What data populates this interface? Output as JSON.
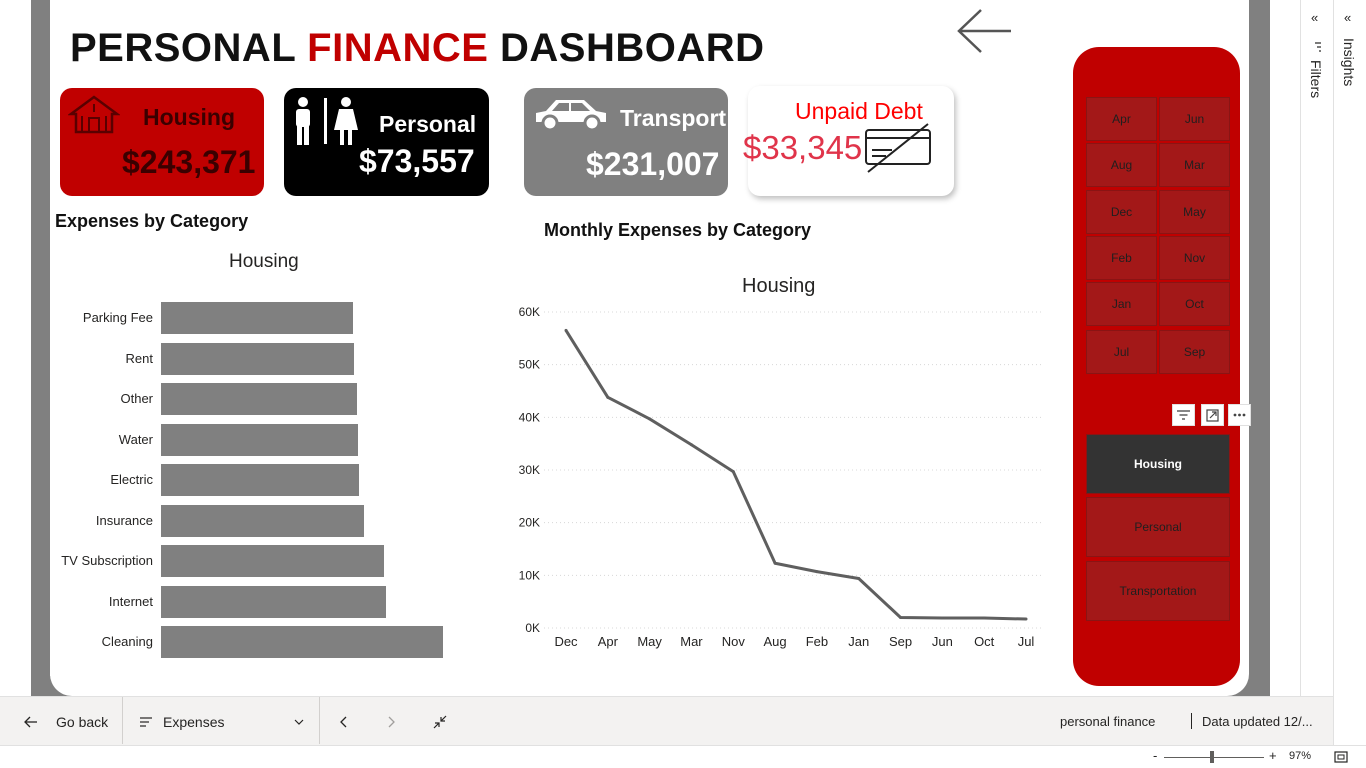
{
  "title": {
    "part1": "PERSONAL ",
    "accent": "FINANCE",
    "part2": " DASHBOARD"
  },
  "kpis": {
    "housing": {
      "label": "Housing",
      "value": "$243,371"
    },
    "personal": {
      "label": "Personal",
      "value": "$73,557"
    },
    "transport": {
      "label": "Transport",
      "value": "$231,007"
    },
    "debt": {
      "label": "Unpaid Debt",
      "value": "$33,345"
    }
  },
  "sections": {
    "expenses_by_category": "Expenses by Category",
    "monthly_expenses": "Monthly Expenses by Category"
  },
  "chart_data": [
    {
      "type": "bar",
      "orientation": "horizontal",
      "title": "Housing",
      "categories": [
        "Parking Fee",
        "Rent",
        "Other",
        "Water",
        "Electric",
        "Insurance",
        "TV Subscription",
        "Internet",
        "Cleaning"
      ],
      "values": [
        24500,
        24650,
        25000,
        25150,
        25250,
        25900,
        28500,
        28700,
        36000
      ],
      "bar_color": "#808080"
    },
    {
      "type": "line",
      "title": "Housing",
      "x": [
        "Dec",
        "Apr",
        "May",
        "Mar",
        "Nov",
        "Aug",
        "Feb",
        "Jan",
        "Sep",
        "Jun",
        "Oct",
        "Jul"
      ],
      "values": [
        56500,
        43800,
        39700,
        34800,
        29700,
        12300,
        10700,
        9400,
        2000,
        1900,
        1900,
        1700
      ],
      "y_ticks": [
        "0K",
        "10K",
        "20K",
        "30K",
        "40K",
        "50K",
        "60K"
      ],
      "ylim": [
        0,
        60000
      ],
      "line_color": "#5f5f5f",
      "grid": true
    }
  ],
  "slicers": {
    "months": [
      "Apr",
      "Jun",
      "Aug",
      "Mar",
      "Dec",
      "May",
      "Feb",
      "Nov",
      "Jan",
      "Oct",
      "Jul",
      "Sep"
    ],
    "categories": [
      "Housing",
      "Personal",
      "Transportation"
    ],
    "selected_category": "Housing"
  },
  "rails": {
    "filters": "Filters",
    "insights": "Insights"
  },
  "bottom_bar": {
    "go_back": "Go back",
    "page_select": "Expenses",
    "workspace": "personal finance",
    "data_updated": "Data updated 12/..."
  },
  "status": {
    "zoom": "97%",
    "minus": "-",
    "plus": "+"
  },
  "colors": {
    "accent_red": "#c00000",
    "debt_red": "#e0344a",
    "slicer_button": "#a31818",
    "selected": "#333333"
  },
  "icons": [
    "house-icon",
    "restroom-icon",
    "car-icon",
    "credit-card-off-icon",
    "back-arrow-icon",
    "filter-icon",
    "focus-mode-icon",
    "more-options-icon",
    "chevron-left-icon",
    "chevron-right-icon",
    "chevron-down-icon",
    "collapse-icon",
    "fit-page-icon"
  ]
}
